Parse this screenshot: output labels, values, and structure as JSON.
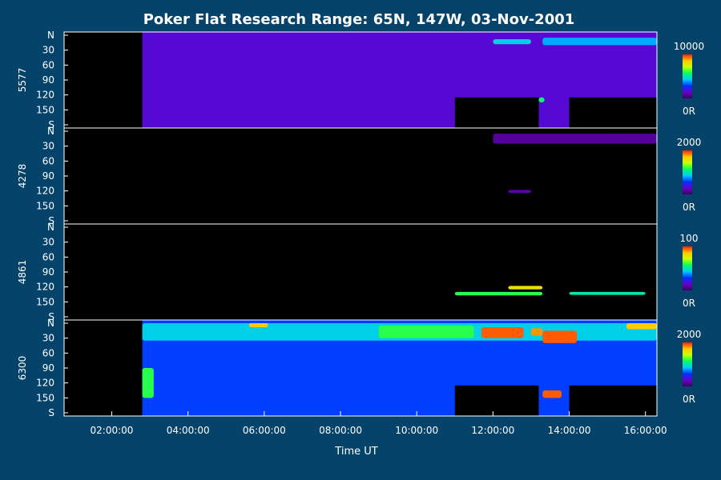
{
  "chart_data": {
    "type": "heatmap",
    "title": "Poker Flat Research Range: 65N, 147W, 03-Nov-2001",
    "xlabel": "Time UT",
    "x_ticks": [
      "02:00:00",
      "04:00:00",
      "06:00:00",
      "08:00:00",
      "10:00:00",
      "12:00:00",
      "14:00:00",
      "16:00:00"
    ],
    "x_range_hours": [
      0.75,
      16.3
    ],
    "y_ticks": [
      "N",
      "30",
      "60",
      "90",
      "120",
      "150",
      "S"
    ],
    "y_range_deg": [
      0,
      180
    ],
    "colormap": [
      "#3a0060",
      "#6a00c8",
      "#0030ff",
      "#00c8ff",
      "#00ff60",
      "#c8ff00",
      "#ffc800",
      "#ff2000"
    ],
    "background_color": "#06436a",
    "panels": [
      {
        "wavelength": "5577",
        "colorbar_max": "10000",
        "colorbar_min": "0R",
        "base_level": 0.17,
        "data_start_hour": 2.8,
        "no_data_boxes": [
          [
            11.0,
            13.2,
            125,
            180
          ],
          [
            14.0,
            16.3,
            125,
            180
          ]
        ],
        "features": [
          {
            "t0": 12.0,
            "t1": 13.0,
            "y0": 8,
            "y1": 18,
            "level": 0.45
          },
          {
            "t0": 13.3,
            "t1": 16.3,
            "y0": 5,
            "y1": 20,
            "level": 0.4
          },
          {
            "t0": 13.2,
            "t1": 13.35,
            "y0": 125,
            "y1": 135,
            "level": 0.55
          }
        ]
      },
      {
        "wavelength": "4278",
        "colorbar_max": "2000",
        "colorbar_min": "0R",
        "base_level": 0.0,
        "data_start_hour": 2.8,
        "no_data_boxes": [],
        "features": [
          {
            "t0": 12.0,
            "t1": 16.3,
            "y0": 5,
            "y1": 25,
            "level": 0.08
          },
          {
            "t0": 12.4,
            "t1": 13.0,
            "y0": 118,
            "y1": 124,
            "level": 0.1
          }
        ]
      },
      {
        "wavelength": "4861",
        "colorbar_max": "100",
        "colorbar_min": "0R",
        "base_level": 0.0,
        "data_start_hour": 2.8,
        "no_data_boxes": [],
        "features": [
          {
            "t0": 12.4,
            "t1": 13.3,
            "y0": 118,
            "y1": 125,
            "level": 0.8
          },
          {
            "t0": 11.0,
            "t1": 13.3,
            "y0": 130,
            "y1": 137,
            "level": 0.6
          },
          {
            "t0": 14.0,
            "t1": 16.0,
            "y0": 130,
            "y1": 136,
            "level": 0.5
          }
        ]
      },
      {
        "wavelength": "6300",
        "colorbar_max": "2000",
        "colorbar_min": "0R",
        "base_level": 0.3,
        "data_start_hour": 2.8,
        "no_data_boxes": [
          [
            11.0,
            13.2,
            125,
            180
          ],
          [
            14.0,
            16.3,
            125,
            180
          ]
        ],
        "features": [
          {
            "t0": 2.8,
            "t1": 16.3,
            "y0": 0,
            "y1": 35,
            "level": 0.45
          },
          {
            "t0": 5.6,
            "t1": 6.1,
            "y0": 0,
            "y1": 8,
            "level": 0.85
          },
          {
            "t0": 9.0,
            "t1": 11.5,
            "y0": 5,
            "y1": 30,
            "level": 0.6
          },
          {
            "t0": 11.7,
            "t1": 12.8,
            "y0": 8,
            "y1": 30,
            "level": 0.95
          },
          {
            "t0": 13.0,
            "t1": 13.3,
            "y0": 10,
            "y1": 25,
            "level": 0.9
          },
          {
            "t0": 13.3,
            "t1": 14.2,
            "y0": 15,
            "y1": 40,
            "level": 0.95
          },
          {
            "t0": 15.5,
            "t1": 16.3,
            "y0": 0,
            "y1": 12,
            "level": 0.85
          },
          {
            "t0": 2.8,
            "t1": 3.1,
            "y0": 90,
            "y1": 150,
            "level": 0.6
          },
          {
            "t0": 13.3,
            "t1": 13.8,
            "y0": 135,
            "y1": 150,
            "level": 0.95
          }
        ]
      }
    ]
  }
}
